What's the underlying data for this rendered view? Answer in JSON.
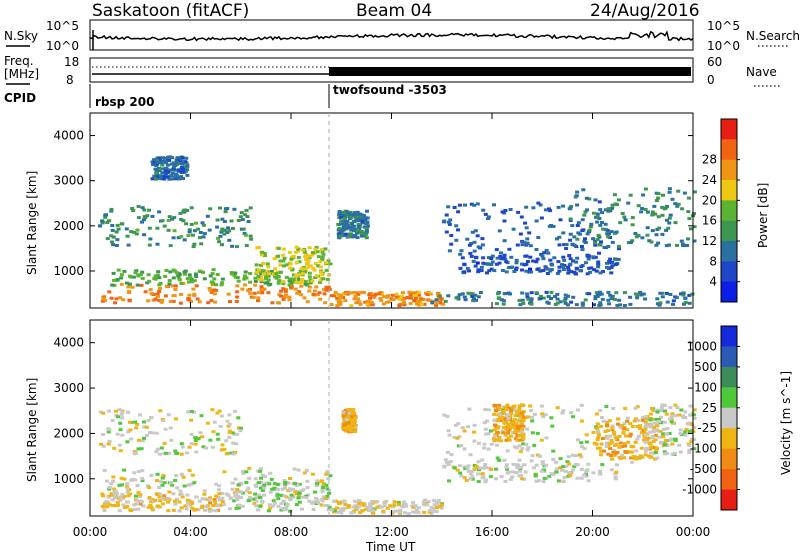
{
  "header": {
    "radar": "Saskatoon (fitACF)",
    "beam": "Beam 04",
    "date": "24/Aug/2016"
  },
  "noise_panel": {
    "left_label": "N.Sky",
    "right_label": "N.Search",
    "left_ticks": [
      "10^5",
      "10^0"
    ],
    "right_ticks": [
      "10^5",
      "10^0"
    ]
  },
  "freq_panel": {
    "left_label_1": "Freq.",
    "left_label_2": "[MHz]",
    "right_label": "Nave",
    "left_ticks": [
      "18",
      "8"
    ],
    "right_ticks": [
      "60",
      "0"
    ]
  },
  "cpid": {
    "label": "CPID",
    "modes": [
      {
        "name": "rbsp 200",
        "start_hour": 0
      },
      {
        "name": "twofsound -3503",
        "start_hour": 9.6
      }
    ]
  },
  "axes": {
    "xlabel": "Time UT",
    "ylabel": "Slant Range [km]",
    "x_ticks": [
      "00:00",
      "04:00",
      "08:00",
      "12:00",
      "16:00",
      "20:00",
      "00:00"
    ],
    "y_ticks": [
      "1000",
      "2000",
      "3000",
      "4000"
    ]
  },
  "colors": {
    "power": [
      "#0a1ee6",
      "#1e46c8",
      "#2a70a0",
      "#3c9650",
      "#5ab432",
      "#f0c814",
      "#f09614",
      "#f06414",
      "#e61e14"
    ],
    "velocity": [
      "#1428dc",
      "#2a5ab4",
      "#3c8c5a",
      "#50c83c",
      "#c8c8c8",
      "#f0b414",
      "#f08c14",
      "#f06414",
      "#e61e14"
    ]
  },
  "chart_data": [
    {
      "type": "heatmap",
      "title": "Power",
      "xlabel": "Time UT",
      "ylabel": "Slant Range [km]",
      "xlim": [
        0,
        24
      ],
      "ylim": [
        180,
        4500
      ],
      "colorbar": {
        "label": "Power [dB]",
        "ticks": [
          "4",
          "8",
          "12",
          "16",
          "20",
          "24",
          "28"
        ],
        "range": [
          0,
          30
        ]
      },
      "regions": [
        {
          "t0": 0.4,
          "t1": 9.5,
          "r0": 250,
          "r1": 700,
          "value": 23
        },
        {
          "t0": 0.8,
          "t1": 9.2,
          "r0": 650,
          "r1": 1000,
          "value": 14
        },
        {
          "t0": 0.3,
          "t1": 6.5,
          "r0": 1500,
          "r1": 2400,
          "value": 11
        },
        {
          "t0": 2.4,
          "t1": 3.8,
          "r0": 3000,
          "r1": 3500,
          "value": 8
        },
        {
          "t0": 6.5,
          "t1": 9.5,
          "r0": 700,
          "r1": 1500,
          "value": 17
        },
        {
          "t0": 9.5,
          "t1": 14.0,
          "r0": 200,
          "r1": 500,
          "value": 22
        },
        {
          "t0": 13.5,
          "t1": 24.0,
          "r0": 200,
          "r1": 500,
          "value": 9
        },
        {
          "t0": 14.0,
          "t1": 21.0,
          "r0": 1200,
          "r1": 2500,
          "value": 7
        },
        {
          "t0": 14.5,
          "t1": 21.0,
          "r0": 900,
          "r1": 1300,
          "value": 6
        },
        {
          "t0": 19.0,
          "t1": 24.0,
          "r0": 1500,
          "r1": 2800,
          "value": 10
        },
        {
          "t0": 9.8,
          "t1": 11.0,
          "r0": 1700,
          "r1": 2300,
          "value": 9
        }
      ]
    },
    {
      "type": "heatmap",
      "title": "Velocity",
      "xlabel": "Time UT",
      "ylabel": "Slant Range [km]",
      "xlim": [
        0,
        24
      ],
      "ylim": [
        180,
        4500
      ],
      "colorbar": {
        "label": "Velocity [m s^-1]",
        "ticks": [
          "1000",
          "500",
          "100",
          "25",
          "-25",
          "-100",
          "-500",
          "-1000"
        ],
        "range": [
          -1200,
          1200
        ]
      },
      "regions": [
        {
          "t0": 0.4,
          "t1": 5.5,
          "r0": 250,
          "r1": 650,
          "value": -200
        },
        {
          "t0": 0.5,
          "t1": 9.5,
          "r0": 500,
          "r1": 1200,
          "value": 0
        },
        {
          "t0": 5.5,
          "t1": 9.5,
          "r0": 250,
          "r1": 900,
          "value": 60
        },
        {
          "t0": 0.3,
          "t1": 6.0,
          "r0": 1500,
          "r1": 2500,
          "value": 0
        },
        {
          "t0": 9.5,
          "t1": 14.0,
          "r0": 200,
          "r1": 500,
          "value": -60
        },
        {
          "t0": 14.0,
          "t1": 22.0,
          "r0": 1300,
          "r1": 2600,
          "value": 0
        },
        {
          "t0": 14.0,
          "t1": 21.0,
          "r0": 900,
          "r1": 1300,
          "value": 0
        },
        {
          "t0": 20.0,
          "t1": 22.5,
          "r0": 1400,
          "r1": 2300,
          "value": -300
        },
        {
          "t0": 16.0,
          "t1": 17.2,
          "r0": 1800,
          "r1": 2600,
          "value": -300
        },
        {
          "t0": 22.0,
          "t1": 24.0,
          "r0": 1500,
          "r1": 2600,
          "value": 0
        },
        {
          "t0": 10.0,
          "t1": 10.5,
          "r0": 2000,
          "r1": 2500,
          "value": -300
        }
      ]
    }
  ]
}
